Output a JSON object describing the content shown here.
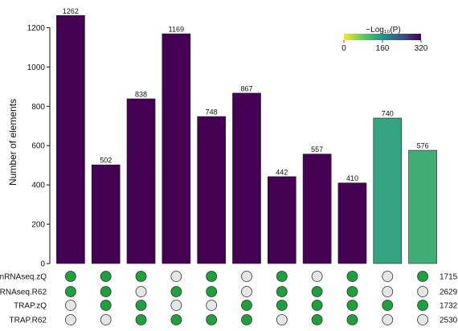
{
  "chart_data": {
    "type": "bar",
    "subtype": "upset",
    "ylabel": "Number of elements",
    "ylim": [
      0,
      1300
    ],
    "yticks": [
      "0",
      "200",
      "400",
      "600",
      "800",
      "1000",
      "1200"
    ],
    "yticks_values": [
      0,
      200,
      400,
      600,
      800,
      1000,
      1200
    ],
    "bars": [
      {
        "value": 1262,
        "label": "1262",
        "logp": 320
      },
      {
        "value": 502,
        "label": "502",
        "logp": 320
      },
      {
        "value": 838,
        "label": "838",
        "logp": 320
      },
      {
        "value": 1169,
        "label": "1169",
        "logp": 320
      },
      {
        "value": 748,
        "label": "748",
        "logp": 320
      },
      {
        "value": 867,
        "label": "867",
        "logp": 320
      },
      {
        "value": 442,
        "label": "442",
        "logp": 320
      },
      {
        "value": 557,
        "label": "557",
        "logp": 320
      },
      {
        "value": 410,
        "label": "410",
        "logp": 320
      },
      {
        "value": 740,
        "label": "740",
        "logp": 135
      },
      {
        "value": 576,
        "label": "576",
        "logp": 120
      }
    ],
    "sets": [
      {
        "name": "snRNAseq.zQ",
        "size": "1715"
      },
      {
        "name": "snRNAseq.R62",
        "size": "2629"
      },
      {
        "name": "TRAP.zQ",
        "size": "1732"
      },
      {
        "name": "TRAP.R62",
        "size": "2530"
      }
    ],
    "membership": [
      [
        1,
        1,
        1,
        0,
        1,
        0,
        1,
        0,
        1,
        0,
        1
      ],
      [
        1,
        1,
        0,
        1,
        1,
        0,
        1,
        1,
        1,
        0,
        0
      ],
      [
        0,
        1,
        1,
        0,
        0,
        1,
        1,
        1,
        1,
        1,
        1
      ],
      [
        0,
        0,
        1,
        1,
        1,
        1,
        0,
        1,
        1,
        0,
        0
      ]
    ],
    "legend": {
      "title": "−Log₁₀(P)",
      "ticks": [
        "0",
        "160",
        "320"
      ],
      "ticks_values": [
        0,
        160,
        320
      ],
      "range": [
        0,
        320
      ],
      "placement": "top-right",
      "colorscale": [
        "#fde725",
        "#5ec962",
        "#21918c",
        "#3b528b",
        "#440154"
      ]
    },
    "colors": {
      "dot_on": "#1ea03c",
      "dot_off": "#e6e6e6",
      "bar_stroke": "#222222"
    }
  }
}
